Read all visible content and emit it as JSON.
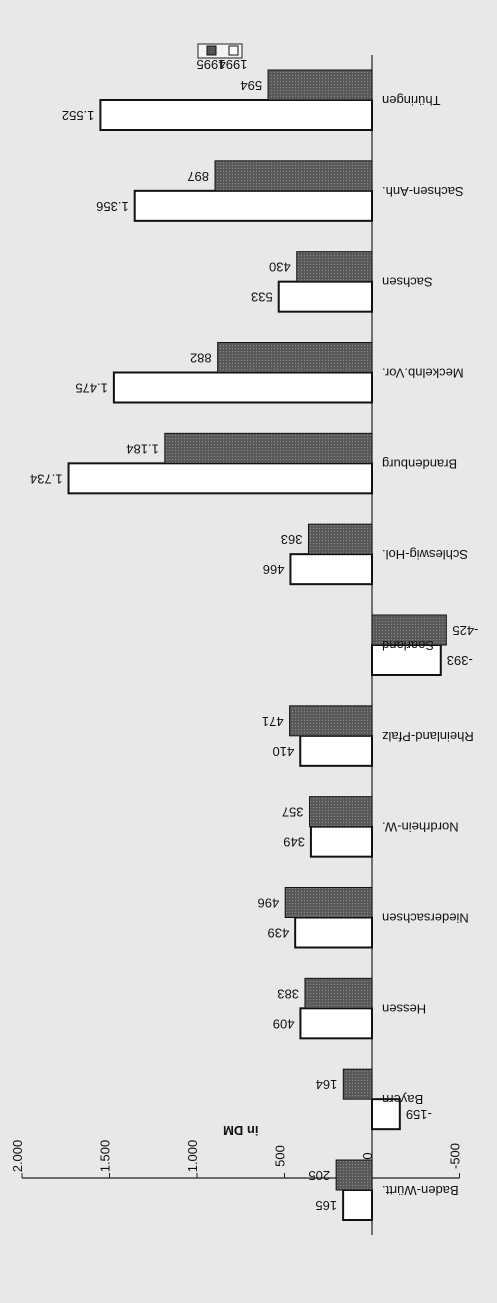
{
  "chart_data": {
    "type": "bar",
    "orientation": "horizontal",
    "rotated_view": "upside-down",
    "title": "",
    "ylabel": "in DM",
    "xlabel": "",
    "ylim": [
      -500,
      2000
    ],
    "yticks": [
      -500,
      0,
      500,
      1000,
      1500,
      2000
    ],
    "ytick_labels": [
      "-500",
      "0",
      "500",
      "1.000",
      "1.500",
      "2.000"
    ],
    "categories": [
      "Baden-Württ.",
      "Bayern",
      "Hessen",
      "Niedersachsen",
      "Nordrhein-W.",
      "Rheinland-Pfalz",
      "Saarland",
      "Schleswig-Hol.",
      "Brandenburg",
      "Meckelnb.Vor.",
      "Sachsen",
      "Sachsen-Anh.",
      "Thüringen"
    ],
    "series": [
      {
        "name": "1994",
        "color": "#ffffff",
        "values": [
          165,
          -159,
          409,
          439,
          349,
          410,
          -393,
          466,
          1734,
          1475,
          533,
          1356,
          1552
        ],
        "labels": [
          "165",
          "-159",
          "409",
          "439",
          "349",
          "410",
          "-393",
          "466",
          "1.734",
          "1.475",
          "533",
          "1.356",
          "1.552"
        ]
      },
      {
        "name": "1995",
        "color": "#555555",
        "values": [
          205,
          164,
          383,
          496,
          357,
          471,
          -425,
          363,
          1184,
          882,
          430,
          897,
          594
        ],
        "labels": [
          "205",
          "164",
          "383",
          "496",
          "357",
          "471",
          "-425",
          "363",
          "1.184",
          "882",
          "430",
          "897",
          "594"
        ]
      }
    ],
    "legend_position": "bottom-right",
    "grid": false
  }
}
